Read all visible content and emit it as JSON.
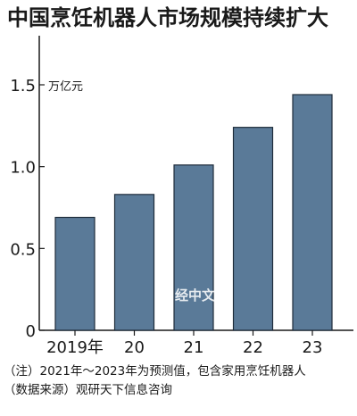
{
  "chart_data": {
    "type": "bar",
    "title": "中国烹饪机器人市场规模持续扩大",
    "unit": "万亿元",
    "categories": [
      "2019年",
      "20",
      "21",
      "22",
      "23"
    ],
    "values": [
      0.69,
      0.83,
      1.01,
      1.24,
      1.44
    ],
    "ylim": [
      0,
      1.8
    ],
    "yticks": [
      0,
      0.5,
      1.0,
      1.5
    ],
    "ytick_labels": [
      "0",
      "0.5",
      "1.0",
      "1.5"
    ],
    "grid": false,
    "bar_color": "#5a7a98",
    "bar_edge_color": "#1e2c3a"
  },
  "watermark": "日经中文网",
  "footnote": {
    "line1": "（注）2021年～2023年为预测值，包含家用烹饪机器人",
    "line2": "（数据来源）观研天下信息咨询"
  }
}
